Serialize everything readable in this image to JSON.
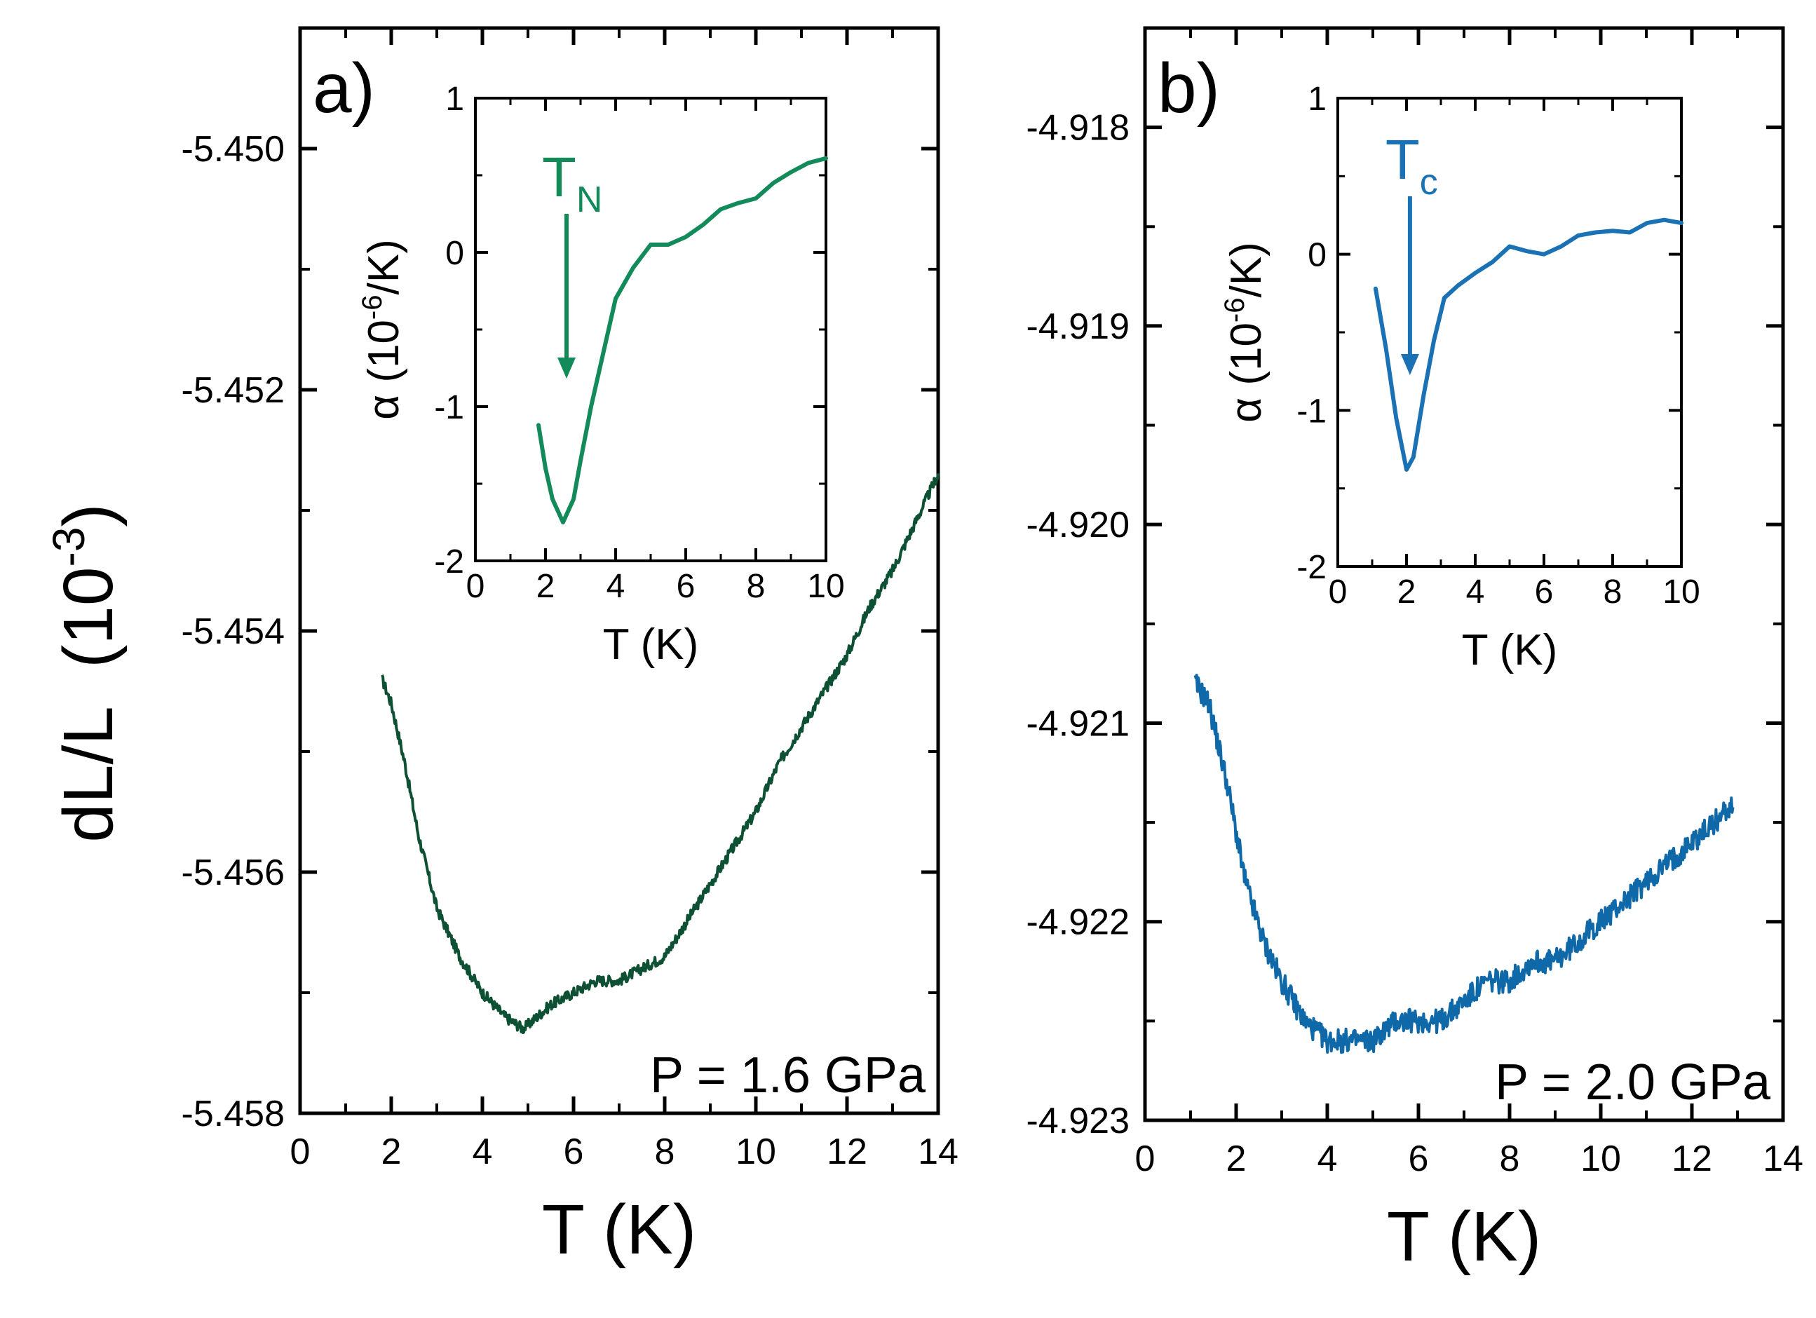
{
  "colors": {
    "panel_a_main": "#0d5033",
    "panel_a_inset": "#138a5a",
    "panel_b_main": "#0f68a8",
    "panel_b_inset": "#1a72b4"
  },
  "figure": {
    "ylabel_main": "dL/L",
    "ylabel_unit": "(10",
    "ylabel_exp": "-3",
    "ylabel_close": ")"
  },
  "chart_data": [
    {
      "type": "line",
      "panel": "a",
      "panel_label": "a)",
      "annotation": "P = 1.6 GPa",
      "xlabel": "T (K)",
      "ylabel": "dL/L (10^-3)",
      "xlim": [
        0,
        14
      ],
      "ylim": [
        -5.458,
        -5.449
      ],
      "xticks": [
        0,
        2,
        4,
        6,
        8,
        10,
        12,
        14
      ],
      "xtick_labels": [
        "0",
        "2",
        "4",
        "6",
        "8",
        "10",
        "12",
        "14"
      ],
      "yticks": [
        -5.458,
        -5.456,
        -5.454,
        -5.452,
        -5.45
      ],
      "ytick_labels": [
        "-5.458",
        "-5.456",
        "-5.454",
        "-5.452",
        "-5.450"
      ],
      "series": [
        {
          "name": "dL/L",
          "x": [
            1.8,
            2.0,
            2.3,
            2.6,
            3.0,
            3.5,
            4.0,
            4.5,
            4.9,
            5.5,
            6.0,
            6.5,
            7.0,
            7.5,
            8.0,
            8.5,
            9.0,
            9.5,
            10.0,
            10.5,
            11.0,
            11.5,
            12.0,
            12.5,
            13.0,
            13.5,
            14.0
          ],
          "y": [
            -5.4544,
            -5.4546,
            -5.4551,
            -5.4557,
            -5.4563,
            -5.4567,
            -5.457,
            -5.4572,
            -5.4573,
            -5.4571,
            -5.457,
            -5.4569,
            -5.4569,
            -5.4568,
            -5.4567,
            -5.4564,
            -5.4561,
            -5.4558,
            -5.4555,
            -5.4551,
            -5.4548,
            -5.4545,
            -5.4542,
            -5.4538,
            -5.4535,
            -5.4531,
            -5.4527
          ]
        }
      ],
      "inset": {
        "xlabel": "T (K)",
        "ylabel_prefix": "α (10",
        "ylabel_exp": "-6",
        "ylabel_suffix": "/K)",
        "xlim": [
          0,
          10
        ],
        "ylim": [
          -2,
          1
        ],
        "xticks": [
          0,
          2,
          4,
          6,
          8,
          10
        ],
        "xtick_labels": [
          "0",
          "2",
          "4",
          "6",
          "8",
          "10"
        ],
        "yticks": [
          -2,
          -1,
          0,
          1
        ],
        "ytick_labels": [
          "-2",
          "-1",
          "0",
          "1"
        ],
        "marker_label": "T",
        "marker_sub": "N",
        "marker_x": 2.6,
        "series": [
          {
            "name": "alpha",
            "x": [
              1.8,
              2.0,
              2.2,
              2.5,
              2.8,
              3.0,
              3.3,
              3.7,
              4.0,
              4.5,
              5.0,
              5.5,
              6.0,
              6.5,
              7.0,
              7.5,
              8.0,
              8.5,
              9.0,
              9.5,
              10.0
            ],
            "y": [
              -1.12,
              -1.4,
              -1.6,
              -1.75,
              -1.6,
              -1.35,
              -1.0,
              -0.6,
              -0.3,
              -0.1,
              0.05,
              0.05,
              0.1,
              0.18,
              0.28,
              0.32,
              0.35,
              0.45,
              0.52,
              0.58,
              0.61
            ]
          }
        ]
      }
    },
    {
      "type": "line",
      "panel": "b",
      "panel_label": "b)",
      "annotation": "P = 2.0 GPa",
      "xlabel": "T (K)",
      "ylabel": "",
      "xlim": [
        0,
        14
      ],
      "ylim": [
        -4.923,
        -4.9175
      ],
      "xticks": [
        0,
        2,
        4,
        6,
        8,
        10,
        12,
        14
      ],
      "xtick_labels": [
        "0",
        "2",
        "4",
        "6",
        "8",
        "10",
        "12",
        "14"
      ],
      "yticks": [
        -4.923,
        -4.922,
        -4.921,
        -4.92,
        -4.919,
        -4.918
      ],
      "ytick_labels": [
        "-4.923",
        "-4.922",
        "-4.921",
        "-4.920",
        "-4.919",
        "-4.918"
      ],
      "series": [
        {
          "name": "dL/L",
          "x": [
            1.1,
            1.4,
            1.8,
            2.2,
            2.6,
            3.0,
            3.5,
            4.0,
            4.5,
            5.0,
            5.5,
            6.0,
            6.5,
            7.0,
            7.5,
            8.0,
            8.5,
            9.0,
            9.5,
            10.0,
            10.5,
            11.0,
            11.5,
            12.0,
            12.5,
            12.9
          ],
          "y": [
            -4.9208,
            -4.9209,
            -4.9213,
            -4.9218,
            -4.9221,
            -4.9223,
            -4.9225,
            -4.9226,
            -4.9226,
            -4.9226,
            -4.9225,
            -4.9225,
            -4.9225,
            -4.9224,
            -4.9223,
            -4.9223,
            -4.9222,
            -4.9222,
            -4.9221,
            -4.922,
            -4.9219,
            -4.9218,
            -4.9217,
            -4.9216,
            -4.9215,
            -4.9214
          ]
        }
      ],
      "inset": {
        "xlabel": "T (K)",
        "ylabel_prefix": "α (10",
        "ylabel_exp": "-6",
        "ylabel_suffix": "/K)",
        "xlim": [
          0,
          10
        ],
        "ylim": [
          -2,
          1
        ],
        "xticks": [
          0,
          2,
          4,
          6,
          8,
          10
        ],
        "xtick_labels": [
          "0",
          "2",
          "4",
          "6",
          "8",
          "10"
        ],
        "yticks": [
          -2,
          -1,
          0,
          1
        ],
        "ytick_labels": [
          "-2",
          "-1",
          "0",
          "1"
        ],
        "marker_label": "T",
        "marker_sub": "c",
        "marker_x": 2.1,
        "series": [
          {
            "name": "alpha",
            "x": [
              1.1,
              1.4,
              1.7,
              2.0,
              2.2,
              2.5,
              2.8,
              3.1,
              3.5,
              4.0,
              4.5,
              5.0,
              5.5,
              6.0,
              6.5,
              7.0,
              7.5,
              8.0,
              8.5,
              9.0,
              9.5,
              10.0
            ],
            "y": [
              -0.22,
              -0.6,
              -1.05,
              -1.38,
              -1.3,
              -0.9,
              -0.55,
              -0.28,
              -0.2,
              -0.12,
              -0.05,
              0.05,
              0.02,
              0.0,
              0.05,
              0.12,
              0.14,
              0.15,
              0.14,
              0.2,
              0.22,
              0.2
            ]
          }
        ]
      }
    }
  ]
}
